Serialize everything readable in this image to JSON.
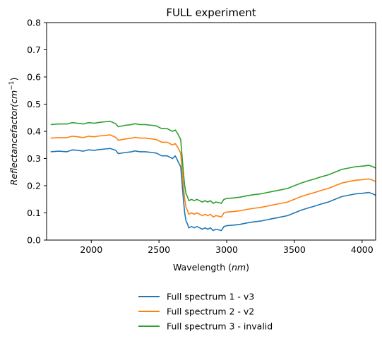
{
  "chart_data": {
    "type": "line",
    "title": "FULL experiment",
    "xlabel": "Wavelength ($nm$)",
    "xlabel_main": "Wavelength (",
    "xlabel_unit": "nm",
    "xlabel_close": ")",
    "ylabel": "$Reflectance factor (cm^{-1})$",
    "ylabel_main": "Reflectancefactor(cm",
    "ylabel_sup": "−1",
    "ylabel_close": ")",
    "xlim": [
      1670,
      4100
    ],
    "ylim": [
      0,
      0.8
    ],
    "xticks": [
      2000,
      2500,
      3000,
      3500,
      4000
    ],
    "xtick_labels": [
      "2000",
      "2500",
      "3000",
      "3500",
      "4000"
    ],
    "yticks": [
      0.0,
      0.1,
      0.2,
      0.3,
      0.4,
      0.5,
      0.6,
      0.7,
      0.8
    ],
    "ytick_labels": [
      "0.0",
      "0.1",
      "0.2",
      "0.3",
      "0.4",
      "0.5",
      "0.6",
      "0.7",
      "0.8"
    ],
    "grid": false,
    "legend_placement": "below",
    "series": [
      {
        "name": "Full spectrum 1 - v3",
        "color": "#1f77b4",
        "x": [
          1700,
          1760,
          1820,
          1860,
          1900,
          1940,
          1980,
          2020,
          2060,
          2100,
          2140,
          2180,
          2200,
          2250,
          2300,
          2320,
          2360,
          2400,
          2450,
          2480,
          2500,
          2520,
          2560,
          2600,
          2620,
          2640,
          2660,
          2670,
          2680,
          2690,
          2700,
          2710,
          2720,
          2740,
          2760,
          2780,
          2800,
          2820,
          2840,
          2860,
          2880,
          2900,
          2920,
          2940,
          2960,
          2980,
          3000,
          3050,
          3100,
          3150,
          3200,
          3250,
          3300,
          3350,
          3400,
          3450,
          3500,
          3550,
          3600,
          3650,
          3700,
          3750,
          3800,
          3850,
          3900,
          3950,
          4000,
          4050,
          4080,
          4100
        ],
        "y": [
          0.325,
          0.327,
          0.325,
          0.332,
          0.33,
          0.327,
          0.332,
          0.33,
          0.333,
          0.335,
          0.337,
          0.33,
          0.318,
          0.322,
          0.325,
          0.328,
          0.325,
          0.325,
          0.322,
          0.32,
          0.315,
          0.31,
          0.31,
          0.3,
          0.31,
          0.29,
          0.27,
          0.21,
          0.15,
          0.1,
          0.07,
          0.06,
          0.045,
          0.05,
          0.045,
          0.05,
          0.045,
          0.04,
          0.045,
          0.04,
          0.045,
          0.035,
          0.04,
          0.038,
          0.035,
          0.05,
          0.053,
          0.055,
          0.058,
          0.063,
          0.067,
          0.07,
          0.075,
          0.08,
          0.085,
          0.09,
          0.1,
          0.11,
          0.118,
          0.125,
          0.133,
          0.14,
          0.15,
          0.16,
          0.165,
          0.17,
          0.172,
          0.175,
          0.17,
          0.165
        ]
      },
      {
        "name": "Full spectrum 2 - v2",
        "color": "#ff7f0e",
        "x": [
          1700,
          1760,
          1820,
          1860,
          1900,
          1940,
          1980,
          2020,
          2060,
          2100,
          2140,
          2180,
          2200,
          2250,
          2300,
          2320,
          2360,
          2400,
          2450,
          2480,
          2500,
          2520,
          2560,
          2600,
          2620,
          2640,
          2660,
          2670,
          2680,
          2690,
          2700,
          2710,
          2720,
          2740,
          2760,
          2780,
          2800,
          2820,
          2840,
          2860,
          2880,
          2900,
          2920,
          2940,
          2960,
          2980,
          3000,
          3050,
          3100,
          3150,
          3200,
          3250,
          3300,
          3350,
          3400,
          3450,
          3500,
          3550,
          3600,
          3650,
          3700,
          3750,
          3800,
          3850,
          3900,
          3950,
          4000,
          4050,
          4080,
          4100
        ],
        "y": [
          0.375,
          0.377,
          0.377,
          0.382,
          0.38,
          0.377,
          0.382,
          0.38,
          0.383,
          0.385,
          0.387,
          0.378,
          0.367,
          0.372,
          0.375,
          0.378,
          0.375,
          0.375,
          0.372,
          0.37,
          0.365,
          0.36,
          0.36,
          0.35,
          0.355,
          0.34,
          0.32,
          0.26,
          0.2,
          0.15,
          0.12,
          0.11,
          0.095,
          0.1,
          0.095,
          0.1,
          0.095,
          0.09,
          0.095,
          0.09,
          0.095,
          0.085,
          0.09,
          0.088,
          0.085,
          0.1,
          0.103,
          0.105,
          0.108,
          0.113,
          0.117,
          0.12,
          0.125,
          0.13,
          0.135,
          0.14,
          0.15,
          0.16,
          0.168,
          0.175,
          0.183,
          0.19,
          0.2,
          0.21,
          0.215,
          0.22,
          0.222,
          0.225,
          0.22,
          0.215
        ]
      },
      {
        "name": "Full spectrum 3 - invalid",
        "color": "#2ca02c",
        "x": [
          1700,
          1760,
          1820,
          1860,
          1900,
          1940,
          1980,
          2020,
          2060,
          2100,
          2140,
          2180,
          2200,
          2250,
          2300,
          2320,
          2360,
          2400,
          2450,
          2480,
          2500,
          2520,
          2560,
          2600,
          2620,
          2640,
          2660,
          2670,
          2680,
          2690,
          2700,
          2710,
          2720,
          2740,
          2760,
          2780,
          2800,
          2820,
          2840,
          2860,
          2880,
          2900,
          2920,
          2940,
          2960,
          2980,
          3000,
          3050,
          3100,
          3150,
          3200,
          3250,
          3300,
          3350,
          3400,
          3450,
          3500,
          3550,
          3600,
          3650,
          3700,
          3750,
          3800,
          3850,
          3900,
          3950,
          4000,
          4050,
          4080,
          4100
        ],
        "y": [
          0.425,
          0.427,
          0.427,
          0.432,
          0.43,
          0.427,
          0.432,
          0.43,
          0.433,
          0.435,
          0.437,
          0.428,
          0.417,
          0.422,
          0.425,
          0.428,
          0.425,
          0.425,
          0.422,
          0.42,
          0.415,
          0.41,
          0.41,
          0.4,
          0.405,
          0.39,
          0.37,
          0.31,
          0.25,
          0.2,
          0.17,
          0.16,
          0.145,
          0.15,
          0.145,
          0.15,
          0.145,
          0.14,
          0.145,
          0.14,
          0.145,
          0.135,
          0.14,
          0.138,
          0.135,
          0.15,
          0.153,
          0.155,
          0.158,
          0.163,
          0.167,
          0.17,
          0.175,
          0.18,
          0.185,
          0.19,
          0.2,
          0.21,
          0.218,
          0.225,
          0.233,
          0.24,
          0.25,
          0.26,
          0.265,
          0.27,
          0.272,
          0.275,
          0.27,
          0.265
        ]
      }
    ]
  }
}
